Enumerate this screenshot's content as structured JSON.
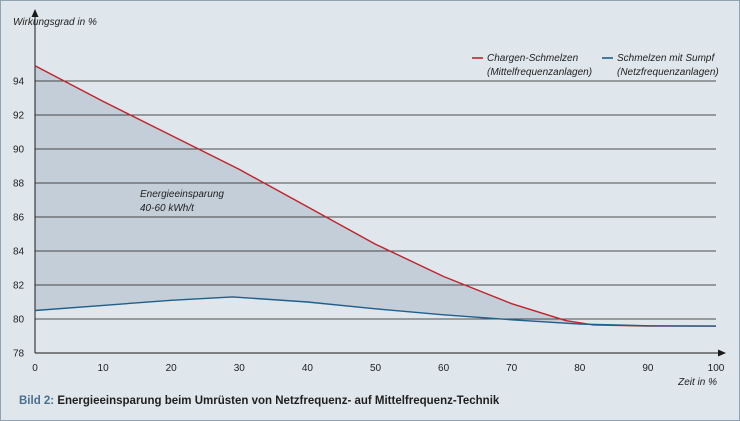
{
  "chart_data": {
    "type": "line",
    "ylabel": "Wirkungsgrad in %",
    "xlabel": "Zeit in %",
    "xlim": [
      0,
      100
    ],
    "ylim": [
      78,
      96
    ],
    "x_ticks": [
      0,
      10,
      20,
      30,
      40,
      50,
      60,
      70,
      80,
      90,
      100
    ],
    "y_ticks": [
      78,
      80,
      82,
      84,
      86,
      88,
      90,
      92,
      94
    ],
    "grid": "horizontal",
    "legend_position": "top-right",
    "series": [
      {
        "name_line1": "Chargen-Schmelzen",
        "name_line2": "(Mittelfrequenzanlagen)",
        "color": "#c0222b",
        "points": [
          [
            0,
            94.9
          ],
          [
            10,
            92.8
          ],
          [
            20,
            90.8
          ],
          [
            30,
            88.8
          ],
          [
            40,
            86.6
          ],
          [
            50,
            84.4
          ],
          [
            60,
            82.5
          ],
          [
            70,
            80.9
          ],
          [
            78,
            79.9
          ],
          [
            82,
            79.65
          ],
          [
            90,
            79.58
          ],
          [
            100,
            79.58
          ]
        ]
      },
      {
        "name_line1": "Schmelzen mit Sumpf",
        "name_line2": "(Netzfrequenzanlagen)",
        "color": "#1f5f8b",
        "points": [
          [
            0,
            80.5
          ],
          [
            10,
            80.8
          ],
          [
            20,
            81.1
          ],
          [
            29,
            81.3
          ],
          [
            40,
            81.0
          ],
          [
            50,
            80.6
          ],
          [
            60,
            80.25
          ],
          [
            70,
            79.95
          ],
          [
            80,
            79.7
          ],
          [
            90,
            79.6
          ],
          [
            100,
            79.58
          ]
        ]
      }
    ],
    "annotation": {
      "line1": "Energieeinsparung",
      "line2": "40-60 kWh/t",
      "fill_color": "#c3ced8"
    }
  },
  "caption": {
    "prefix": "Bild 2:",
    "text": " Energieeinsparung beim Umrüsten von Netzfrequenz- auf Mittelfrequenz-Technik"
  },
  "colors": {
    "background": "#dfe6ec",
    "grid": "#1a1a1a"
  }
}
